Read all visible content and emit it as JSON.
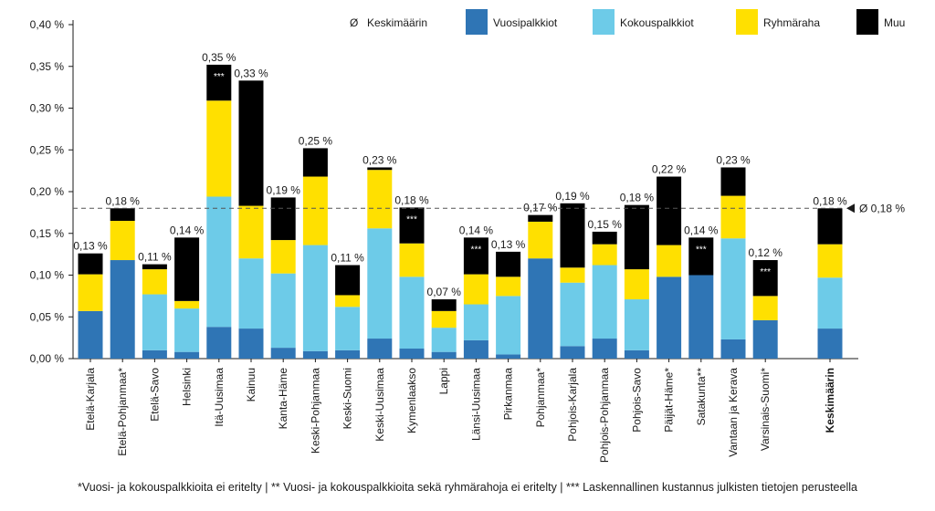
{
  "chart_data": {
    "type": "bar",
    "stacked": true,
    "categories": [
      "Etelä-Karjala",
      "Etelä-Pohjanmaa*",
      "Etelä-Savo",
      "Helsinki",
      "Itä-Uusimaa",
      "Kainuu",
      "Kanta-Häme",
      "Keski-Pohjanmaa",
      "Keski-Suomi",
      "Keski-Uusimaa",
      "Kymenlaakso",
      "Lappi",
      "Länsi-Uusimaa",
      "Pirkanmaa",
      "Pohjanmaa*",
      "Pohjois-Karjala",
      "Pohjois-Pohjanmaa",
      "Pohjois-Savo",
      "Päijät-Häme*",
      "Satakunta**",
      "Vantaan ja Kerava",
      "Varsinais-Suomi*",
      "Keskimäärin"
    ],
    "series": [
      {
        "name": "Vuosipalkkiot",
        "color": "#2f75b5",
        "values": [
          0.057,
          0.118,
          0.01,
          0.008,
          0.038,
          0.036,
          0.013,
          0.009,
          0.01,
          0.024,
          0.012,
          0.008,
          0.022,
          0.005,
          0.12,
          0.015,
          0.024,
          0.01,
          0.098,
          0.1,
          0.023,
          0.046,
          0.036
        ]
      },
      {
        "name": "Kokouspalkkiot",
        "color": "#6dcbe8",
        "values": [
          0.0,
          0.0,
          0.067,
          0.052,
          0.156,
          0.084,
          0.089,
          0.127,
          0.052,
          0.132,
          0.086,
          0.029,
          0.043,
          0.07,
          0.0,
          0.076,
          0.088,
          0.061,
          0.0,
          0.0,
          0.121,
          0.0,
          0.061
        ]
      },
      {
        "name": "Ryhmäraha",
        "color": "#ffe000",
        "values": [
          0.044,
          0.047,
          0.03,
          0.009,
          0.115,
          0.063,
          0.04,
          0.082,
          0.014,
          0.07,
          0.04,
          0.02,
          0.036,
          0.023,
          0.044,
          0.018,
          0.025,
          0.036,
          0.038,
          0.0,
          0.051,
          0.029,
          0.04
        ]
      },
      {
        "name": "Muu",
        "color": "#000000",
        "values": [
          0.025,
          0.015,
          0.006,
          0.076,
          0.043,
          0.15,
          0.051,
          0.034,
          0.036,
          0.003,
          0.043,
          0.014,
          0.044,
          0.03,
          0.008,
          0.077,
          0.015,
          0.077,
          0.082,
          0.045,
          0.034,
          0.043,
          0.043
        ]
      }
    ],
    "totals_labels": [
      "0,13 %",
      "0,18 %",
      "0,11 %",
      "0,14 %",
      "0,35 %",
      "0,33 %",
      "0,19 %",
      "0,25 %",
      "0,11 %",
      "0,23 %",
      "0,18 %",
      "0,07 %",
      "0,14 %",
      "0,13 %",
      "0,17 %",
      "0,19 %",
      "0,15 %",
      "0,18 %",
      "0,22 %",
      "0,14 %",
      "0,23 %",
      "0,12 %",
      "0,18 %"
    ],
    "stars_marker": "***",
    "stars_categories": [
      4,
      10,
      12,
      19,
      21
    ],
    "bold_categories": [
      22
    ],
    "ylim": [
      0,
      0.4
    ],
    "yticks": [
      0,
      0.05,
      0.1,
      0.15,
      0.2,
      0.25,
      0.3,
      0.35,
      0.4
    ],
    "ytick_labels": [
      "0,00 %",
      "0,05 %",
      "0,10 %",
      "0,15 %",
      "0,20 %",
      "0,25 %",
      "0,30 %",
      "0,35 %",
      "0,40 %"
    ],
    "average_line": {
      "value": 0.18,
      "label": "Ø 0,18 %"
    },
    "legend": {
      "position": "top-right",
      "average_symbol": "Ø",
      "average_label": "Keskimäärin",
      "entries": [
        "Vuosipalkkiot",
        "Kokouspalkkiot",
        "Ryhmäraha",
        "Muu"
      ]
    },
    "footnote": "*Vuosi- ja kokouspalkkioita ei eritelty | ** Vuosi- ja kokouspalkkioita sekä ryhmärahoja ei eritelty | *** Laskennallinen kustannus julkisten tietojen perusteella",
    "grid": false
  }
}
